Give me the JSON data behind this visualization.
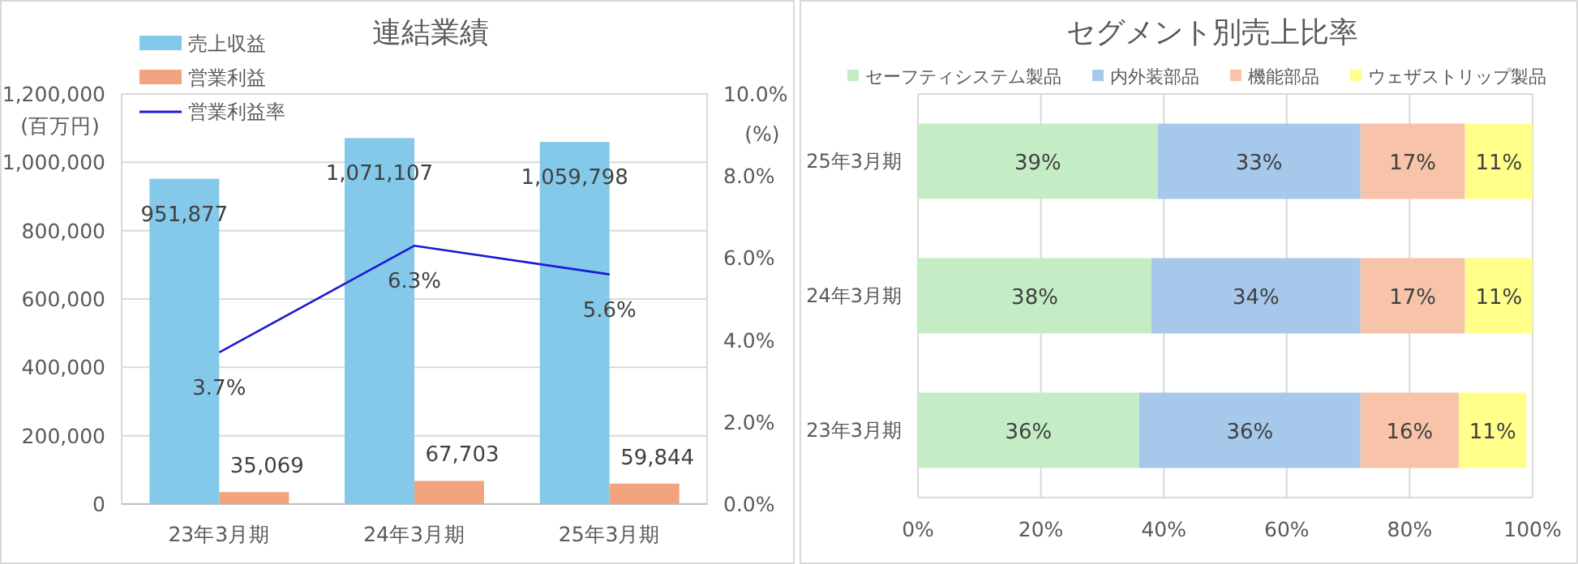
{
  "chart_data": [
    {
      "type": "bar",
      "title": "連結業績",
      "categories": [
        "23年3月期",
        "24年3月期",
        "25年3月期"
      ],
      "ylabel": "(百万円)",
      "y2label": "(%)",
      "series": [
        {
          "name": "売上収益",
          "color": "#84c9ea",
          "values": [
            951877,
            1071107,
            1059798
          ],
          "value_labels": [
            "951,877",
            "1,071,107",
            "1,059,798"
          ]
        },
        {
          "name": "営業利益",
          "color": "#f2a47f",
          "values": [
            35069,
            67703,
            59844
          ],
          "value_labels": [
            "35,069",
            "67,703",
            "59,844"
          ]
        },
        {
          "name": "営業利益率",
          "type": "line",
          "axis": "y2",
          "color": "#1a1ad4",
          "values": [
            3.7,
            6.3,
            5.6
          ],
          "value_labels": [
            "3.7%",
            "6.3%",
            "5.6%"
          ]
        }
      ],
      "ylim": [
        0,
        1200000
      ],
      "yticks": [
        {
          "value": 0,
          "label": "0"
        },
        {
          "value": 200000,
          "label": "200,000"
        },
        {
          "value": 400000,
          "label": "400,000"
        },
        {
          "value": 600000,
          "label": "600,000"
        },
        {
          "value": 800000,
          "label": "800,000"
        },
        {
          "value": 1000000,
          "label": "1,000,000"
        },
        {
          "value": 1200000,
          "label": "1,200,000"
        }
      ],
      "y2lim": [
        0,
        10
      ],
      "y2ticks": [
        {
          "value": 0,
          "label": "0.0%"
        },
        {
          "value": 2,
          "label": "2.0%"
        },
        {
          "value": 4,
          "label": "4.0%"
        },
        {
          "value": 6,
          "label": "6.0%"
        },
        {
          "value": 8,
          "label": "8.0%"
        },
        {
          "value": 10,
          "label": "10.0%"
        }
      ],
      "data_labels": true,
      "grid": "y",
      "legend": "top left",
      "marker": "none"
    },
    {
      "type": "bar",
      "title": "セグメント別売上比率",
      "orientation": "horizontal",
      "stacked": true,
      "categories": [
        "25年3月期",
        "24年3月期",
        "23年3月期"
      ],
      "series": [
        {
          "name": "セーフティシステム製品",
          "color": "#c4edc6",
          "values": [
            39,
            38,
            36
          ],
          "value_labels": [
            "39%",
            "38%",
            "36%"
          ]
        },
        {
          "name": "内外装部品",
          "color": "#a6c8eb",
          "values": [
            33,
            34,
            36
          ],
          "value_labels": [
            "33%",
            "34%",
            "36%"
          ]
        },
        {
          "name": "機能部品",
          "color": "#f7c4a9",
          "values": [
            17,
            17,
            16
          ],
          "value_labels": [
            "17%",
            "17%",
            "16%"
          ]
        },
        {
          "name": "ウェザストリップ製品",
          "color": "#ffff8a",
          "values": [
            11,
            11,
            11
          ],
          "value_labels": [
            "11%",
            "11%",
            "11%"
          ]
        }
      ],
      "xlim": [
        0,
        100
      ],
      "xticks": [
        {
          "value": 0,
          "label": "0%"
        },
        {
          "value": 20,
          "label": "20%"
        },
        {
          "value": 40,
          "label": "40%"
        },
        {
          "value": 60,
          "label": "60%"
        },
        {
          "value": 80,
          "label": "80%"
        },
        {
          "value": 100,
          "label": "100%"
        }
      ],
      "grid": "x",
      "legend": "top"
    }
  ]
}
